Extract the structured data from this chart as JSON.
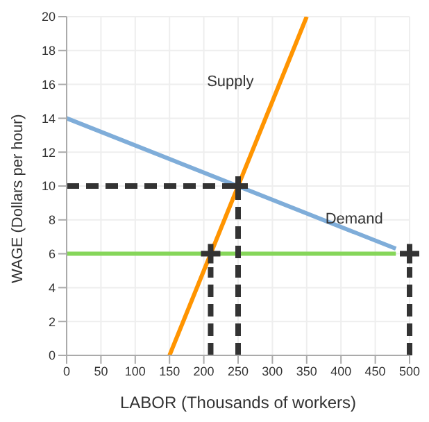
{
  "chart_data": {
    "type": "line",
    "xlabel": "LABOR (Thousands of workers)",
    "ylabel": "WAGE (Dollars per hour)",
    "xlim": [
      0,
      500
    ],
    "xticks": [
      0,
      50,
      100,
      150,
      200,
      250,
      300,
      350,
      400,
      450,
      500
    ],
    "ylim": [
      0,
      20
    ],
    "yticks": [
      0,
      2,
      4,
      6,
      8,
      10,
      12,
      14,
      16,
      18,
      20
    ],
    "grid": true,
    "series": [
      {
        "name": "Demand",
        "color": "#7fadd9",
        "x": [
          0,
          480
        ],
        "values": [
          14,
          6.3
        ]
      },
      {
        "name": "Supply",
        "color": "#ff9400",
        "x": [
          150,
          350
        ],
        "values": [
          0,
          20
        ]
      },
      {
        "color": "#86d65a",
        "x": [
          0,
          480
        ],
        "values": [
          6,
          6
        ]
      },
      {
        "color": "#333333",
        "line_style": "dashed",
        "x": [
          0,
          250
        ],
        "values": [
          10,
          10
        ]
      },
      {
        "color": "#333333",
        "line_style": "dashed",
        "x": [
          250,
          250
        ],
        "values": [
          0,
          10
        ]
      },
      {
        "color": "#333333",
        "line_style": "dashed",
        "x": [
          210,
          210
        ],
        "values": [
          0,
          5.2
        ]
      },
      {
        "color": "#333333",
        "line_style": "dashed",
        "x": [
          500,
          500
        ],
        "values": [
          0,
          5.2
        ]
      },
      {
        "type": "scatter",
        "marker": "cross",
        "color": "#333333",
        "x": [
          250,
          210,
          500
        ],
        "values": [
          10,
          6,
          6
        ]
      }
    ]
  }
}
